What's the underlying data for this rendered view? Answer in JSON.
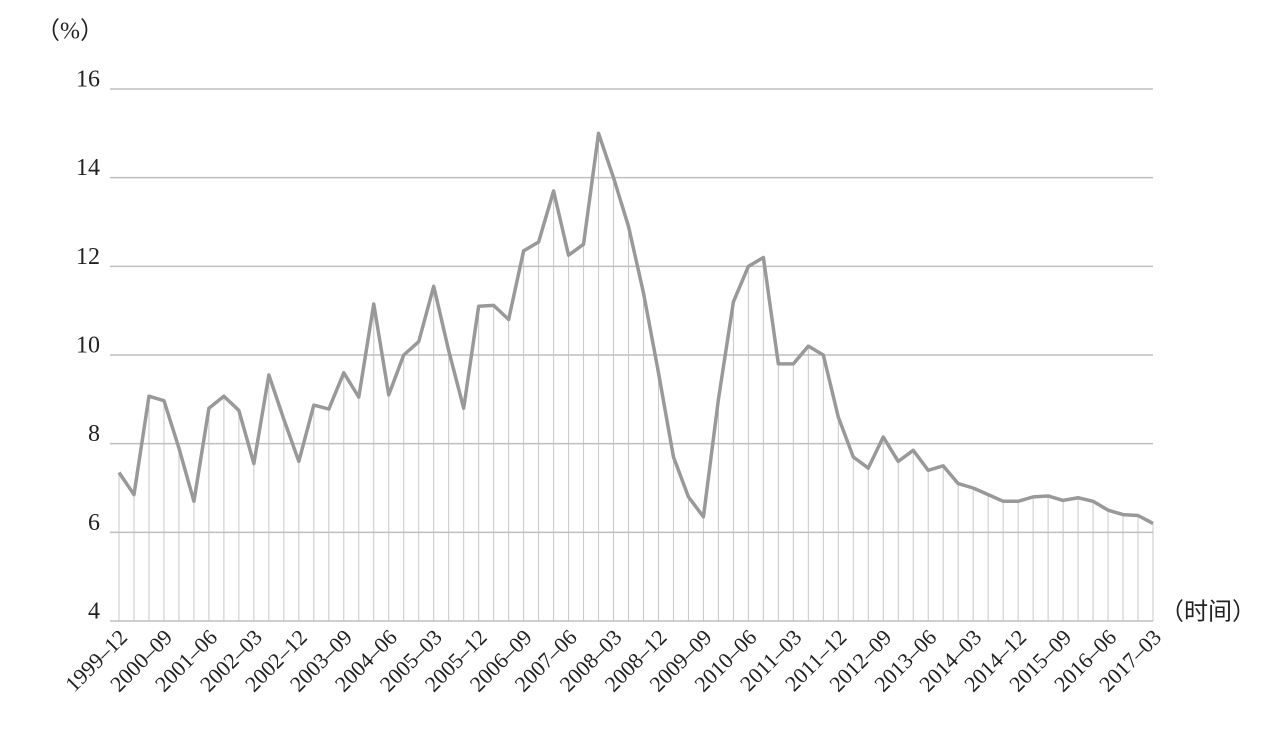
{
  "chart_data": {
    "type": "line",
    "y_unit_label": "（%）",
    "x_unit_label": "（时间）",
    "categories": [
      "1999–12",
      null,
      null,
      "2000–09",
      null,
      null,
      "2001–06",
      null,
      null,
      "2002–03",
      null,
      null,
      "2002–12",
      null,
      null,
      "2003–09",
      null,
      null,
      "2004–06",
      null,
      null,
      "2005–03",
      null,
      null,
      "2005–12",
      null,
      null,
      "2006–09",
      null,
      null,
      "2007–06",
      null,
      null,
      "2008–03",
      null,
      null,
      "2008–12",
      null,
      null,
      "2009–09",
      null,
      null,
      "2010–06",
      null,
      null,
      "2011–03",
      null,
      null,
      "2011–12",
      null,
      null,
      "2012–09",
      null,
      null,
      "2013–06",
      null,
      null,
      "2014–03",
      null,
      null,
      "2014–12",
      null,
      null,
      "2015–09",
      null,
      null,
      "2016–06",
      null,
      null,
      "2017–03"
    ],
    "values": [
      7.35,
      6.85,
      9.07,
      8.97,
      7.9,
      6.7,
      8.8,
      9.07,
      8.75,
      7.55,
      9.55,
      8.55,
      7.6,
      8.87,
      8.78,
      9.6,
      9.05,
      11.15,
      9.1,
      10.0,
      10.3,
      11.55,
      10.1,
      8.8,
      11.1,
      11.12,
      10.8,
      12.35,
      12.55,
      13.7,
      12.25,
      12.5,
      15.0,
      14.0,
      12.9,
      11.4,
      9.6,
      7.7,
      6.8,
      6.35,
      9.0,
      11.2,
      12.0,
      12.2,
      9.8,
      9.8,
      10.2,
      10.0,
      8.6,
      7.7,
      7.45,
      8.15,
      7.6,
      7.85,
      7.4,
      7.5,
      7.1,
      7.0,
      6.85,
      6.7,
      6.7,
      6.8,
      6.82,
      6.72,
      6.78,
      6.7,
      6.5,
      6.4,
      6.38,
      6.2
    ],
    "color": "#999999",
    "drop_line_color": "#c8c8c8",
    "ylim": [
      4,
      16
    ],
    "yticks": [
      4,
      6,
      8,
      10,
      12,
      14,
      16
    ],
    "grid": true
  }
}
